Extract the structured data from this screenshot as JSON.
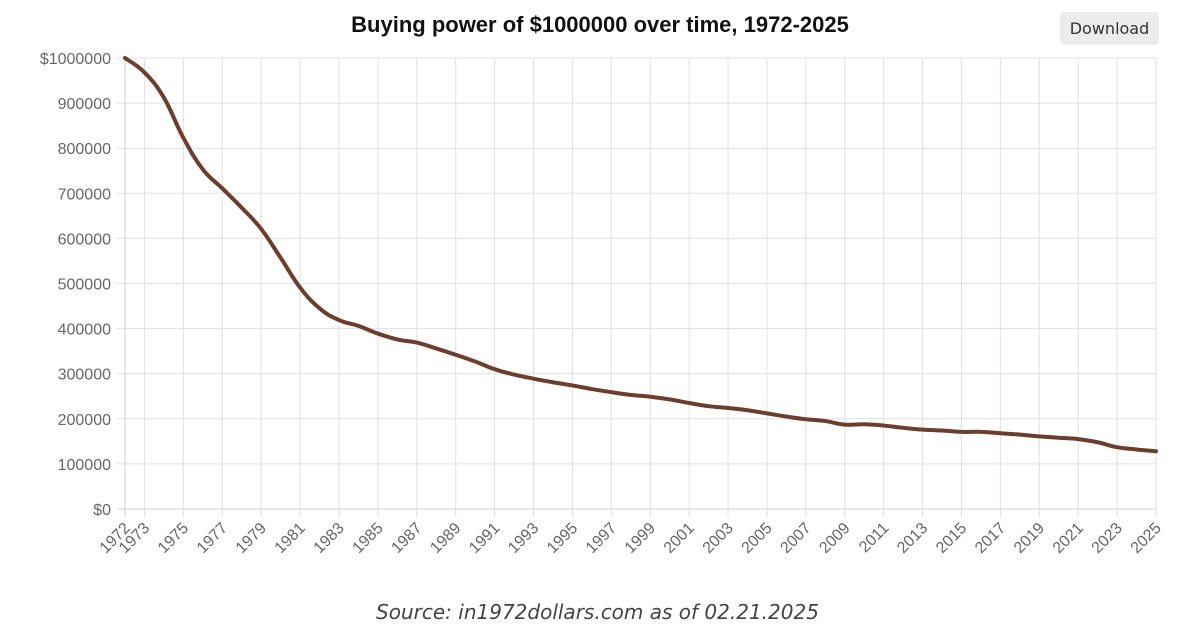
{
  "header": {
    "download_label": "Download"
  },
  "footer": {
    "source": "Source: in1972dollars.com as of 02.21.2025"
  },
  "colors": {
    "line": "#6b3e2e",
    "grid": "#e0e0e0",
    "axis_text": "#666666"
  },
  "chart_data": {
    "type": "line",
    "title": "Buying power of $1000000 over time, 1972-2025",
    "xlabel": "",
    "ylabel": "",
    "ylim": [
      0,
      1000000
    ],
    "grid": true,
    "legend": "none",
    "y_ticks": [
      {
        "value": 0,
        "label": "$0"
      },
      {
        "value": 100000,
        "label": "100000"
      },
      {
        "value": 200000,
        "label": "200000"
      },
      {
        "value": 300000,
        "label": "300000"
      },
      {
        "value": 400000,
        "label": "400000"
      },
      {
        "value": 500000,
        "label": "500000"
      },
      {
        "value": 600000,
        "label": "600000"
      },
      {
        "value": 700000,
        "label": "700000"
      },
      {
        "value": 800000,
        "label": "800000"
      },
      {
        "value": 900000,
        "label": "900000"
      },
      {
        "value": 1000000,
        "label": "$1000000"
      }
    ],
    "x_tick_labels": [
      "1972",
      "1973",
      "1975",
      "1977",
      "1979",
      "1981",
      "1983",
      "1985",
      "1987",
      "1989",
      "1991",
      "1993",
      "1995",
      "1997",
      "1999",
      "2001",
      "2003",
      "2005",
      "2007",
      "2009",
      "2011",
      "2013",
      "2015",
      "2017",
      "2019",
      "2021",
      "2023",
      "2025"
    ],
    "series": [
      {
        "name": "Buying power",
        "x": [
          1972,
          1973,
          1974,
          1975,
          1976,
          1977,
          1978,
          1979,
          1980,
          1981,
          1982,
          1983,
          1984,
          1985,
          1986,
          1987,
          1988,
          1989,
          1990,
          1991,
          1992,
          1993,
          1994,
          1995,
          1996,
          1997,
          1998,
          1999,
          2000,
          2001,
          2002,
          2003,
          2004,
          2005,
          2006,
          2007,
          2008,
          2009,
          2010,
          2011,
          2012,
          2013,
          2014,
          2015,
          2016,
          2017,
          2018,
          2019,
          2020,
          2021,
          2022,
          2023,
          2024,
          2025
        ],
        "values": [
          1000000,
          968000,
          912000,
          823000,
          753000,
          711000,
          668000,
          621000,
          557000,
          491000,
          445000,
          419000,
          406000,
          389000,
          376000,
          369000,
          356000,
          342000,
          327000,
          310000,
          298000,
          289000,
          281000,
          274000,
          266000,
          259000,
          253000,
          249000,
          243000,
          235000,
          228000,
          224000,
          219000,
          212000,
          205000,
          199000,
          195000,
          187000,
          188000,
          185000,
          180000,
          176000,
          174000,
          171000,
          171000,
          168000,
          165000,
          161000,
          158000,
          155000,
          148000,
          137000,
          132000,
          128000
        ]
      }
    ]
  }
}
